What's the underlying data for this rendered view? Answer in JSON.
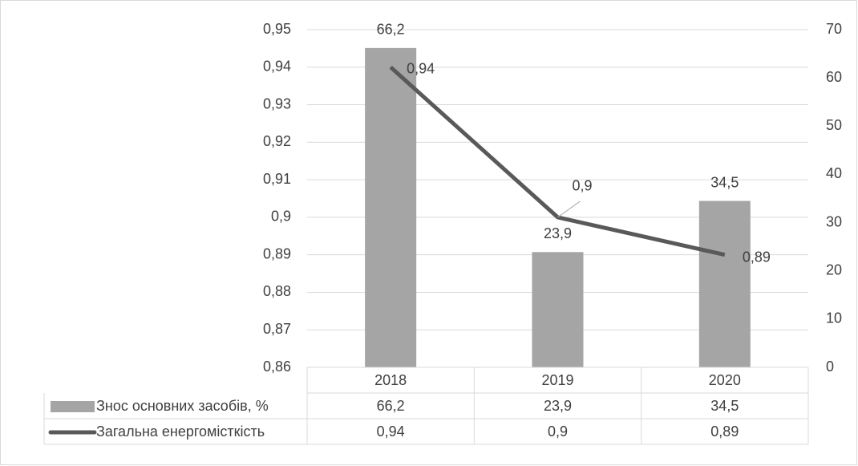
{
  "chart_data": {
    "type": "combo",
    "categories": [
      "2018",
      "2019",
      "2020"
    ],
    "series": [
      {
        "name": "Знос основних засобів, %",
        "type": "bar",
        "axis": "y2",
        "color": "#a5a5a5",
        "values": [
          66.2,
          23.9,
          34.5
        ],
        "value_labels": [
          "66,2",
          "23,9",
          "34,5"
        ]
      },
      {
        "name": "Загальна енергомісткість",
        "type": "line",
        "axis": "y",
        "color": "#595959",
        "values": [
          0.94,
          0.9,
          0.89
        ],
        "value_labels": [
          "0,94",
          "0,9",
          "0,89"
        ]
      }
    ],
    "ylim": [
      0.86,
      0.95
    ],
    "yticks": [
      {
        "value": 0.86,
        "label": "0,86"
      },
      {
        "value": 0.87,
        "label": "0,87"
      },
      {
        "value": 0.88,
        "label": "0,88"
      },
      {
        "value": 0.89,
        "label": "0,89"
      },
      {
        "value": 0.9,
        "label": "0,9"
      },
      {
        "value": 0.91,
        "label": "0,91"
      },
      {
        "value": 0.92,
        "label": "0,92"
      },
      {
        "value": 0.93,
        "label": "0,93"
      },
      {
        "value": 0.94,
        "label": "0,94"
      },
      {
        "value": 0.95,
        "label": "0,95"
      }
    ],
    "y2lim": [
      0,
      70
    ],
    "y2ticks": [
      0,
      10,
      20,
      30,
      40,
      50,
      60,
      70
    ],
    "grid": true,
    "data_table": true
  }
}
